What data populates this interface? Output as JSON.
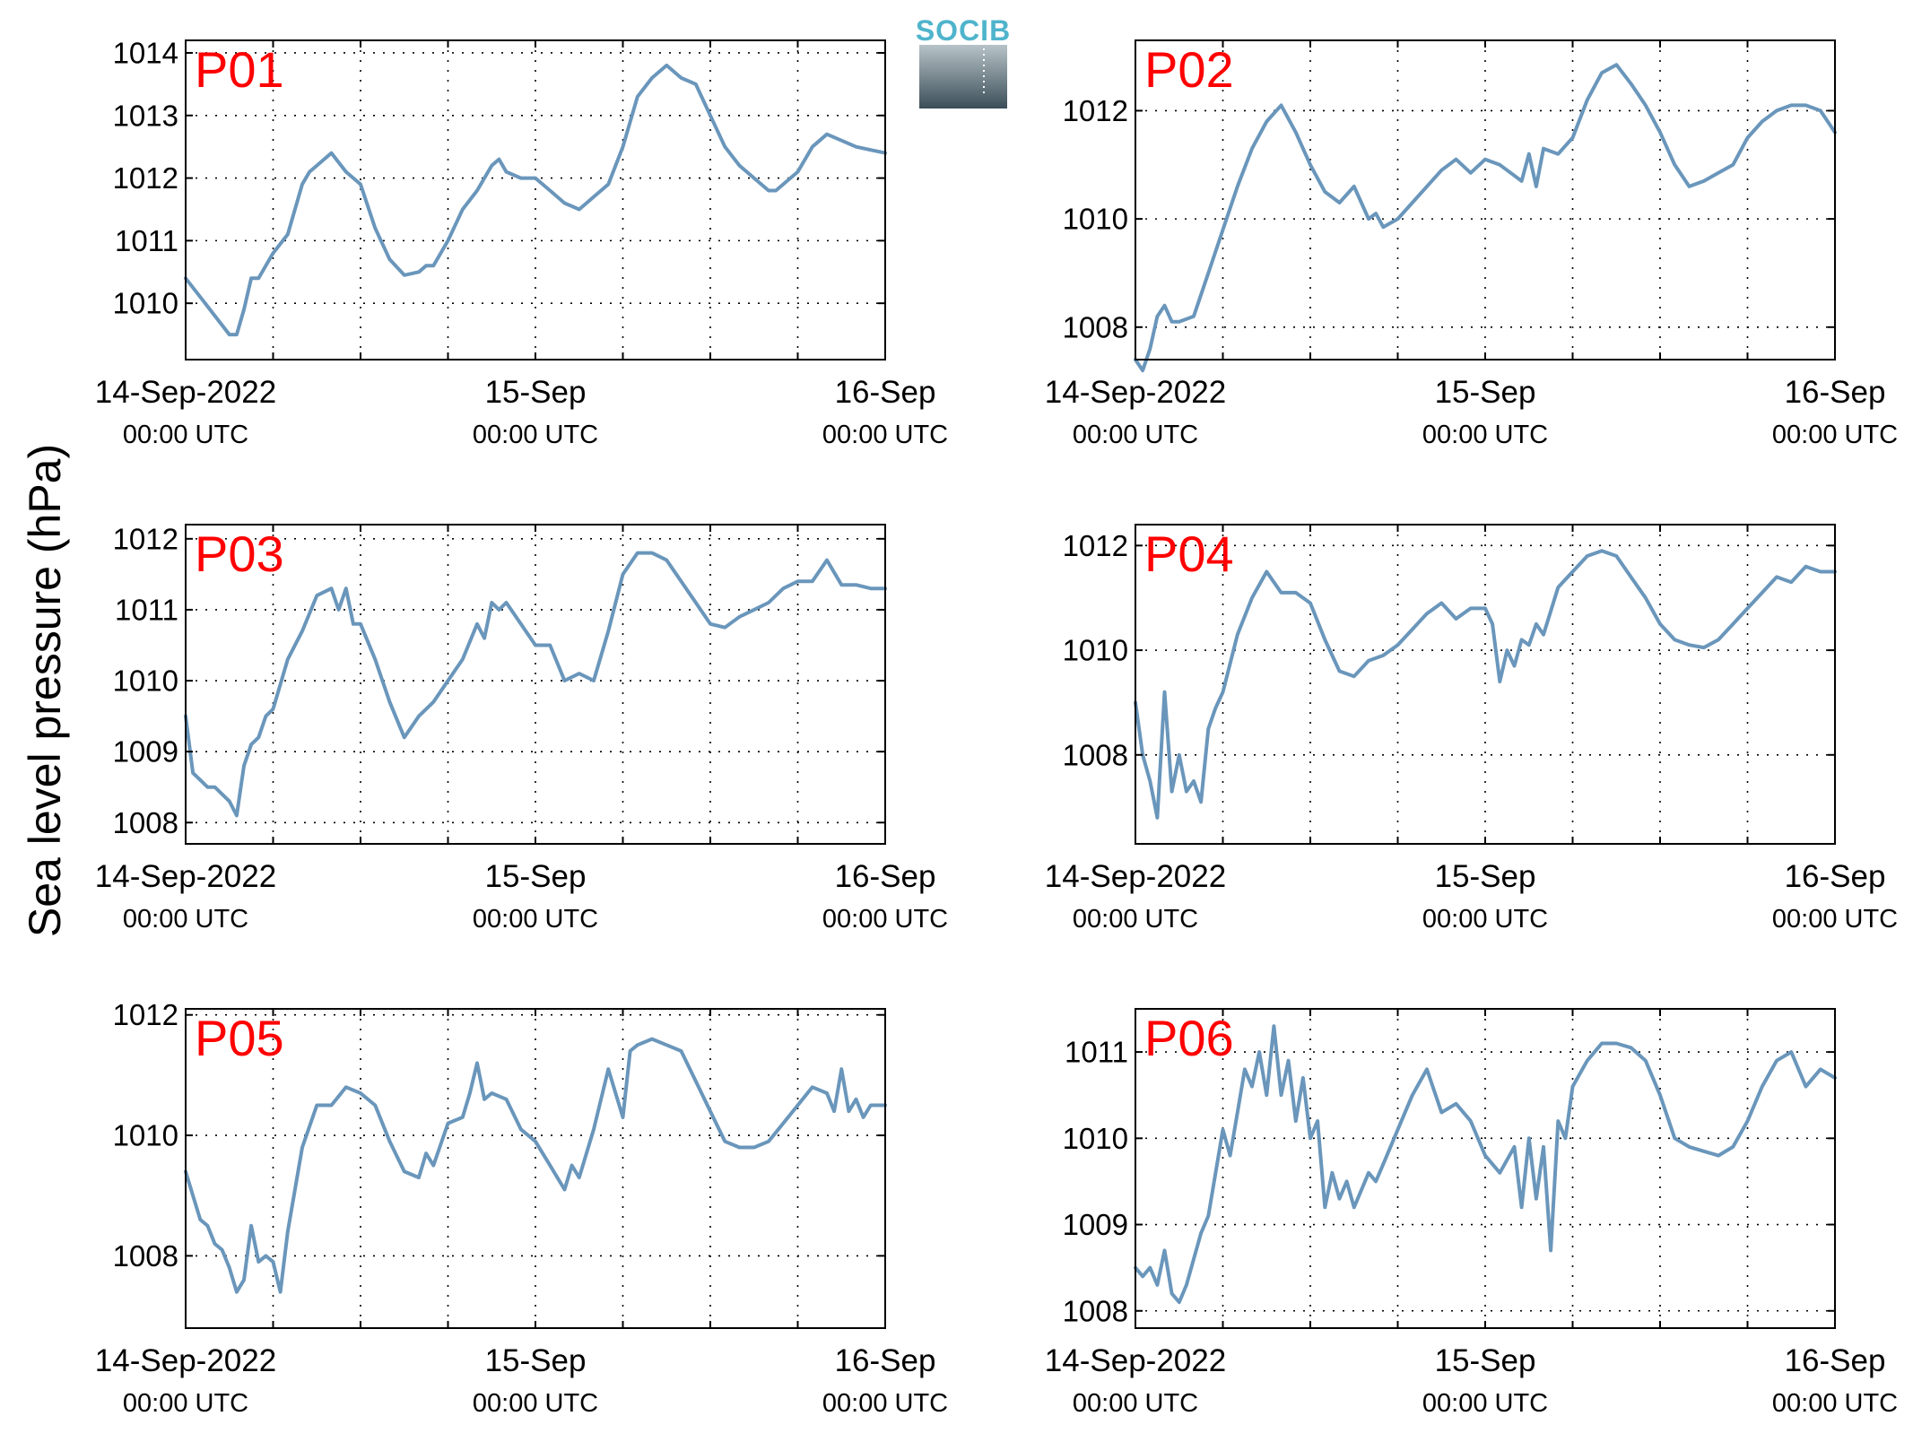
{
  "figure": {
    "ylabel": "Sea level pressure (hPa)",
    "x_tick_labels": [
      {
        "main": "14-Sep-2022",
        "sub": "00:00 UTC"
      },
      {
        "main": "15-Sep",
        "sub": "00:00 UTC"
      },
      {
        "main": "16-Sep",
        "sub": "00:00 UTC"
      }
    ],
    "logo_text": "SOCIB",
    "colors": {
      "series": "#6a96bb",
      "panel_label": "#ff0000",
      "logo_text": "#4fb4cc",
      "logo_top": "#b7c3c8",
      "logo_bottom": "#3b4e58"
    }
  },
  "chart_data": [
    {
      "type": "line",
      "title": "P01",
      "x_unit": "hours since 14-Sep-2022 00:00 UTC",
      "xlim": [
        0,
        48
      ],
      "ylim": [
        1009.1,
        1014.2
      ],
      "yticks": [
        1010,
        1011,
        1012,
        1013,
        1014
      ],
      "x": [
        0,
        1,
        2,
        3,
        3.5,
        4,
        4.5,
        5,
        6,
        7,
        8,
        8.5,
        9,
        10,
        11,
        12,
        13,
        14,
        15,
        16,
        16.5,
        17,
        18,
        19,
        20,
        21,
        21.5,
        22,
        23,
        24,
        25,
        26,
        27,
        28,
        29,
        30,
        31,
        32,
        33,
        34,
        35,
        36,
        37,
        38,
        39,
        40,
        40.5,
        41,
        42,
        43,
        44,
        45,
        46,
        47,
        48
      ],
      "y": [
        1010.4,
        1010.1,
        1009.8,
        1009.5,
        1009.5,
        1009.9,
        1010.4,
        1010.4,
        1010.8,
        1011.1,
        1011.9,
        1012.1,
        1012.2,
        1012.4,
        1012.1,
        1011.9,
        1011.2,
        1010.7,
        1010.45,
        1010.5,
        1010.6,
        1010.6,
        1011.0,
        1011.5,
        1011.8,
        1012.2,
        1012.3,
        1012.1,
        1012.0,
        1012.0,
        1011.8,
        1011.6,
        1011.5,
        1011.7,
        1011.9,
        1012.5,
        1013.3,
        1013.6,
        1013.8,
        1013.6,
        1013.5,
        1013.0,
        1012.5,
        1012.2,
        1012.0,
        1011.8,
        1011.8,
        1011.9,
        1012.1,
        1012.5,
        1012.7,
        1012.6,
        1012.5,
        1012.45,
        1012.4
      ]
    },
    {
      "type": "line",
      "title": "P02",
      "x_unit": "hours since 14-Sep-2022 00:00 UTC",
      "xlim": [
        0,
        48
      ],
      "ylim": [
        1007.4,
        1013.3
      ],
      "yticks": [
        1008,
        1010,
        1012
      ],
      "x": [
        0,
        0.5,
        1,
        1.5,
        2,
        2.5,
        3,
        4,
        5,
        6,
        7,
        8,
        9,
        10,
        11,
        12,
        13,
        14,
        15,
        15.5,
        16,
        16.5,
        17,
        18,
        19,
        20,
        21,
        22,
        23,
        24,
        25,
        26,
        26.5,
        27,
        27.5,
        28,
        29,
        30,
        31,
        32,
        33,
        34,
        35,
        36,
        37,
        38,
        39,
        40,
        41,
        42,
        43,
        44,
        45,
        46,
        47,
        48
      ],
      "y": [
        1007.4,
        1007.2,
        1007.6,
        1008.2,
        1008.4,
        1008.1,
        1008.1,
        1008.2,
        1009.0,
        1009.8,
        1010.6,
        1011.3,
        1011.8,
        1012.1,
        1011.6,
        1011.0,
        1010.5,
        1010.3,
        1010.6,
        1010.3,
        1010.0,
        1010.1,
        1009.85,
        1010.0,
        1010.3,
        1010.6,
        1010.9,
        1011.1,
        1010.85,
        1011.1,
        1011.0,
        1010.8,
        1010.7,
        1011.2,
        1010.6,
        1011.3,
        1011.2,
        1011.5,
        1012.2,
        1012.7,
        1012.85,
        1012.5,
        1012.1,
        1011.6,
        1011.0,
        1010.6,
        1010.7,
        1010.85,
        1011.0,
        1011.5,
        1011.8,
        1012.0,
        1012.1,
        1012.1,
        1012.0,
        1011.6
      ]
    },
    {
      "type": "line",
      "title": "P03",
      "x_unit": "hours since 14-Sep-2022 00:00 UTC",
      "xlim": [
        0,
        48
      ],
      "ylim": [
        1007.7,
        1012.2
      ],
      "yticks": [
        1008,
        1009,
        1010,
        1011,
        1012
      ],
      "x": [
        0,
        0.5,
        1,
        1.5,
        2,
        2.5,
        3,
        3.5,
        4,
        4.5,
        5,
        5.5,
        6,
        7,
        8,
        9,
        10,
        10.5,
        11,
        11.5,
        12,
        13,
        14,
        15,
        16,
        17,
        18,
        19,
        20,
        20.5,
        21,
        21.5,
        22,
        23,
        24,
        25,
        26,
        27,
        28,
        29,
        30,
        31,
        32,
        33,
        34,
        35,
        36,
        37,
        38,
        39,
        40,
        41,
        42,
        43,
        44,
        45,
        46,
        47,
        48
      ],
      "y": [
        1009.5,
        1008.7,
        1008.6,
        1008.5,
        1008.5,
        1008.4,
        1008.3,
        1008.1,
        1008.8,
        1009.1,
        1009.2,
        1009.5,
        1009.6,
        1010.3,
        1010.7,
        1011.2,
        1011.3,
        1011.0,
        1011.3,
        1010.8,
        1010.8,
        1010.3,
        1009.7,
        1009.2,
        1009.5,
        1009.7,
        1010.0,
        1010.3,
        1010.8,
        1010.6,
        1011.1,
        1011.0,
        1011.1,
        1010.8,
        1010.5,
        1010.5,
        1010.0,
        1010.1,
        1010.0,
        1010.7,
        1011.5,
        1011.8,
        1011.8,
        1011.7,
        1011.4,
        1011.1,
        1010.8,
        1010.75,
        1010.9,
        1011.0,
        1011.1,
        1011.3,
        1011.4,
        1011.4,
        1011.7,
        1011.35,
        1011.35,
        1011.3,
        1011.3
      ]
    },
    {
      "type": "line",
      "title": "P04",
      "x_unit": "hours since 14-Sep-2022 00:00 UTC",
      "xlim": [
        0,
        48
      ],
      "ylim": [
        1006.3,
        1012.4
      ],
      "yticks": [
        1008,
        1010,
        1012
      ],
      "x": [
        0,
        0.5,
        1,
        1.5,
        2,
        2.5,
        3,
        3.5,
        4,
        4.5,
        5,
        5.5,
        6,
        7,
        8,
        9,
        10,
        11,
        12,
        13,
        14,
        15,
        16,
        17,
        18,
        19,
        20,
        21,
        22,
        23,
        24,
        24.5,
        25,
        25.5,
        26,
        26.5,
        27,
        27.5,
        28,
        29,
        30,
        31,
        32,
        33,
        34,
        35,
        36,
        37,
        38,
        39,
        40,
        41,
        42,
        43,
        44,
        45,
        46,
        47,
        48
      ],
      "y": [
        1009.0,
        1008.0,
        1007.5,
        1006.8,
        1009.2,
        1007.3,
        1008.0,
        1007.3,
        1007.5,
        1007.1,
        1008.5,
        1008.9,
        1009.2,
        1010.3,
        1011.0,
        1011.5,
        1011.1,
        1011.1,
        1010.9,
        1010.2,
        1009.6,
        1009.5,
        1009.8,
        1009.9,
        1010.1,
        1010.4,
        1010.7,
        1010.9,
        1010.6,
        1010.8,
        1010.8,
        1010.5,
        1009.4,
        1010.0,
        1009.7,
        1010.2,
        1010.1,
        1010.5,
        1010.3,
        1011.2,
        1011.5,
        1011.8,
        1011.9,
        1011.8,
        1011.4,
        1011.0,
        1010.5,
        1010.2,
        1010.1,
        1010.05,
        1010.2,
        1010.5,
        1010.8,
        1011.1,
        1011.4,
        1011.3,
        1011.6,
        1011.5,
        1011.5
      ]
    },
    {
      "type": "line",
      "title": "P05",
      "x_unit": "hours since 14-Sep-2022 00:00 UTC",
      "xlim": [
        0,
        48
      ],
      "ylim": [
        1006.8,
        1012.1
      ],
      "yticks": [
        1008,
        1010,
        1012
      ],
      "x": [
        0,
        0.5,
        1,
        1.5,
        2,
        2.5,
        3,
        3.5,
        4,
        4.5,
        5,
        5.5,
        6,
        6.5,
        7,
        8,
        9,
        10,
        11,
        12,
        13,
        14,
        15,
        16,
        16.5,
        17,
        18,
        19,
        19.5,
        20,
        20.5,
        21,
        22,
        23,
        24,
        25,
        26,
        26.5,
        27,
        28,
        29,
        30,
        30.5,
        31,
        32,
        33,
        34,
        35,
        36,
        37,
        38,
        39,
        40,
        41,
        42,
        43,
        44,
        44.5,
        45,
        45.5,
        46,
        46.5,
        47,
        47.5,
        48
      ],
      "y": [
        1009.4,
        1009.0,
        1008.6,
        1008.5,
        1008.2,
        1008.1,
        1007.8,
        1007.4,
        1007.6,
        1008.5,
        1007.9,
        1008.0,
        1007.9,
        1007.4,
        1008.4,
        1009.8,
        1010.5,
        1010.5,
        1010.8,
        1010.7,
        1010.5,
        1009.9,
        1009.4,
        1009.3,
        1009.7,
        1009.5,
        1010.2,
        1010.3,
        1010.7,
        1011.2,
        1010.6,
        1010.7,
        1010.6,
        1010.1,
        1009.9,
        1009.5,
        1009.1,
        1009.5,
        1009.3,
        1010.1,
        1011.1,
        1010.3,
        1011.4,
        1011.5,
        1011.6,
        1011.5,
        1011.4,
        1010.9,
        1010.4,
        1009.9,
        1009.8,
        1009.8,
        1009.9,
        1010.2,
        1010.5,
        1010.8,
        1010.7,
        1010.4,
        1011.1,
        1010.4,
        1010.6,
        1010.3,
        1010.5,
        1010.5,
        1010.5
      ]
    },
    {
      "type": "line",
      "title": "P06",
      "x_unit": "hours since 14-Sep-2022 00:00 UTC",
      "xlim": [
        0,
        48
      ],
      "ylim": [
        1007.8,
        1011.5
      ],
      "yticks": [
        1008,
        1009,
        1010,
        1011
      ],
      "x": [
        0,
        0.5,
        1,
        1.5,
        2,
        2.5,
        3,
        3.5,
        4,
        4.5,
        5,
        5.5,
        6,
        6.5,
        7,
        7.5,
        8,
        8.5,
        9,
        9.5,
        10,
        10.5,
        11,
        11.5,
        12,
        12.5,
        13,
        13.5,
        14,
        14.5,
        15,
        15.5,
        16,
        16.5,
        17,
        18,
        19,
        20,
        21,
        22,
        23,
        24,
        25,
        26,
        26.5,
        27,
        27.5,
        28,
        28.5,
        29,
        29.5,
        30,
        31,
        32,
        33,
        34,
        35,
        36,
        37,
        38,
        39,
        40,
        41,
        42,
        43,
        44,
        45,
        46,
        47,
        48
      ],
      "y": [
        1008.5,
        1008.4,
        1008.5,
        1008.3,
        1008.7,
        1008.2,
        1008.1,
        1008.3,
        1008.6,
        1008.9,
        1009.1,
        1009.6,
        1010.1,
        1009.8,
        1010.3,
        1010.8,
        1010.6,
        1011.0,
        1010.5,
        1011.3,
        1010.5,
        1010.9,
        1010.2,
        1010.7,
        1010.0,
        1010.2,
        1009.2,
        1009.6,
        1009.3,
        1009.5,
        1009.2,
        1009.4,
        1009.6,
        1009.5,
        1009.7,
        1010.1,
        1010.5,
        1010.8,
        1010.3,
        1010.4,
        1010.2,
        1009.8,
        1009.6,
        1009.9,
        1009.2,
        1010.0,
        1009.3,
        1009.9,
        1008.7,
        1010.2,
        1010.0,
        1010.6,
        1010.9,
        1011.1,
        1011.1,
        1011.05,
        1010.9,
        1010.5,
        1010.0,
        1009.9,
        1009.85,
        1009.8,
        1009.9,
        1010.2,
        1010.6,
        1010.9,
        1011.0,
        1010.6,
        1010.8,
        1010.7
      ]
    }
  ]
}
